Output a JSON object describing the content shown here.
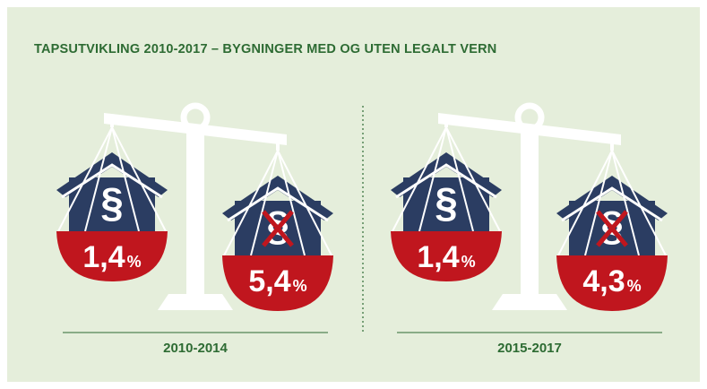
{
  "title": "TAPSUTVIKLING 2010-2017 – BYGNINGER MED OG UTEN LEGALT VERN",
  "panels": [
    {
      "period": "2010-2014",
      "items": [
        {
          "value": "1,4",
          "unit": "%"
        },
        {
          "value": "5,4",
          "unit": "%"
        }
      ]
    },
    {
      "period": "2015-2017",
      "items": [
        {
          "value": "1,4",
          "unit": "%"
        },
        {
          "value": "4,3",
          "unit": "%"
        }
      ]
    }
  ]
}
